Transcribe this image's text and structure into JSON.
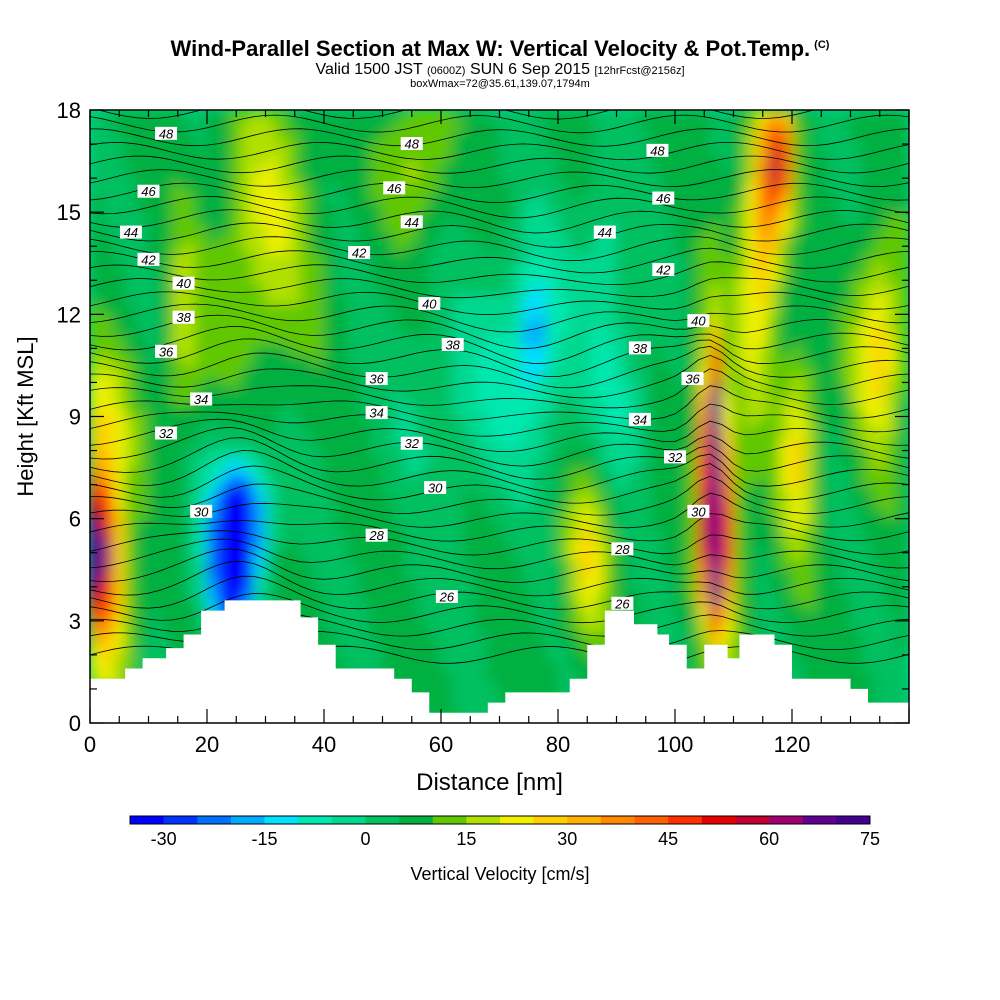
{
  "header": {
    "title": "Wind-Parallel Section at Max W: Vertical Velocity & Pot.Temp.",
    "copyright": "(C)",
    "valid_prefix": "Valid 1500 JST",
    "valid_utc": "(0600Z)",
    "valid_date": "SUN 6 Sep 2015",
    "forecast": "[12hrFcst@2156z]",
    "box_info": "boxWmax=72@35.61,139.07,1794m"
  },
  "chart_data": {
    "type": "heatmap",
    "xlabel": "Distance [nm]",
    "ylabel": "Height [Kft MSL]",
    "xlim": [
      0,
      140
    ],
    "ylim": [
      0,
      18
    ],
    "xticks": [
      0,
      20,
      40,
      60,
      80,
      100,
      120
    ],
    "yticks": [
      0,
      3,
      6,
      9,
      12,
      15,
      18
    ],
    "colorbar": {
      "label": "Vertical Velocity [cm/s]",
      "min": -30,
      "max": 80,
      "step": 5,
      "ticks": [
        -30,
        -15,
        0,
        15,
        30,
        45,
        60,
        75
      ],
      "colors": [
        "#0000ff",
        "#0033ff",
        "#0070ff",
        "#00aaff",
        "#00e0ff",
        "#00e8b0",
        "#00d890",
        "#00c060",
        "#00b040",
        "#60c800",
        "#b0e000",
        "#f0f000",
        "#ffd000",
        "#ffb000",
        "#ff8800",
        "#ff6000",
        "#ff3000",
        "#e80000",
        "#c00030",
        "#a00070",
        "#600090",
        "#400090"
      ]
    },
    "terrain": [
      [
        0,
        1.3
      ],
      [
        6,
        1.3
      ],
      [
        6,
        1.6
      ],
      [
        9,
        1.6
      ],
      [
        9,
        1.9
      ],
      [
        13,
        1.9
      ],
      [
        13,
        2.2
      ],
      [
        16,
        2.2
      ],
      [
        16,
        2.6
      ],
      [
        19,
        2.6
      ],
      [
        19,
        3.3
      ],
      [
        23,
        3.3
      ],
      [
        23,
        3.6
      ],
      [
        36,
        3.6
      ],
      [
        36,
        3.1
      ],
      [
        39,
        3.1
      ],
      [
        39,
        2.3
      ],
      [
        42,
        2.3
      ],
      [
        42,
        1.6
      ],
      [
        52,
        1.6
      ],
      [
        52,
        1.3
      ],
      [
        55,
        1.3
      ],
      [
        55,
        0.9
      ],
      [
        58,
        0.9
      ],
      [
        58,
        0.3
      ],
      [
        68,
        0.3
      ],
      [
        68,
        0.6
      ],
      [
        71,
        0.6
      ],
      [
        71,
        0.9
      ],
      [
        82,
        0.9
      ],
      [
        82,
        1.3
      ],
      [
        85,
        1.3
      ],
      [
        85,
        2.3
      ],
      [
        88,
        2.3
      ],
      [
        88,
        3.3
      ],
      [
        93,
        3.3
      ],
      [
        93,
        2.9
      ],
      [
        97,
        2.9
      ],
      [
        97,
        2.6
      ],
      [
        99,
        2.6
      ],
      [
        99,
        2.3
      ],
      [
        102,
        2.3
      ],
      [
        102,
        1.6
      ],
      [
        105,
        1.6
      ],
      [
        105,
        2.3
      ],
      [
        109,
        2.3
      ],
      [
        109,
        1.9
      ],
      [
        111,
        1.9
      ],
      [
        111,
        2.6
      ],
      [
        117,
        2.6
      ],
      [
        117,
        2.3
      ],
      [
        120,
        2.3
      ],
      [
        120,
        1.3
      ],
      [
        130,
        1.3
      ],
      [
        130,
        1.0
      ],
      [
        133,
        1.0
      ],
      [
        133,
        0.6
      ],
      [
        140,
        0.6
      ]
    ],
    "theta_labels": [
      {
        "x": 13,
        "y": 17.3,
        "v": "48"
      },
      {
        "x": 55,
        "y": 17.0,
        "v": "48"
      },
      {
        "x": 97,
        "y": 16.8,
        "v": "48"
      },
      {
        "x": 10,
        "y": 15.6,
        "v": "46"
      },
      {
        "x": 52,
        "y": 15.7,
        "v": "46"
      },
      {
        "x": 98,
        "y": 15.4,
        "v": "46"
      },
      {
        "x": 7,
        "y": 14.4,
        "v": "44"
      },
      {
        "x": 55,
        "y": 14.7,
        "v": "44"
      },
      {
        "x": 88,
        "y": 14.4,
        "v": "44"
      },
      {
        "x": 10,
        "y": 13.6,
        "v": "42"
      },
      {
        "x": 46,
        "y": 13.8,
        "v": "42"
      },
      {
        "x": 98,
        "y": 13.3,
        "v": "42"
      },
      {
        "x": 16,
        "y": 12.9,
        "v": "40"
      },
      {
        "x": 58,
        "y": 12.3,
        "v": "40"
      },
      {
        "x": 104,
        "y": 11.8,
        "v": "40"
      },
      {
        "x": 16,
        "y": 11.9,
        "v": "38"
      },
      {
        "x": 62,
        "y": 11.1,
        "v": "38"
      },
      {
        "x": 94,
        "y": 11.0,
        "v": "38"
      },
      {
        "x": 13,
        "y": 10.9,
        "v": "36"
      },
      {
        "x": 49,
        "y": 10.1,
        "v": "36"
      },
      {
        "x": 103,
        "y": 10.1,
        "v": "36"
      },
      {
        "x": 19,
        "y": 9.5,
        "v": "34"
      },
      {
        "x": 49,
        "y": 9.1,
        "v": "34"
      },
      {
        "x": 94,
        "y": 8.9,
        "v": "34"
      },
      {
        "x": 13,
        "y": 8.5,
        "v": "32"
      },
      {
        "x": 55,
        "y": 8.2,
        "v": "32"
      },
      {
        "x": 100,
        "y": 7.8,
        "v": "32"
      },
      {
        "x": 19,
        "y": 6.2,
        "v": "30"
      },
      {
        "x": 59,
        "y": 6.9,
        "v": "30"
      },
      {
        "x": 104,
        "y": 6.2,
        "v": "30"
      },
      {
        "x": 49,
        "y": 5.5,
        "v": "28"
      },
      {
        "x": 91,
        "y": 5.1,
        "v": "28"
      },
      {
        "x": 61,
        "y": 3.7,
        "v": "26"
      },
      {
        "x": 91,
        "y": 3.5,
        "v": "26"
      }
    ]
  }
}
